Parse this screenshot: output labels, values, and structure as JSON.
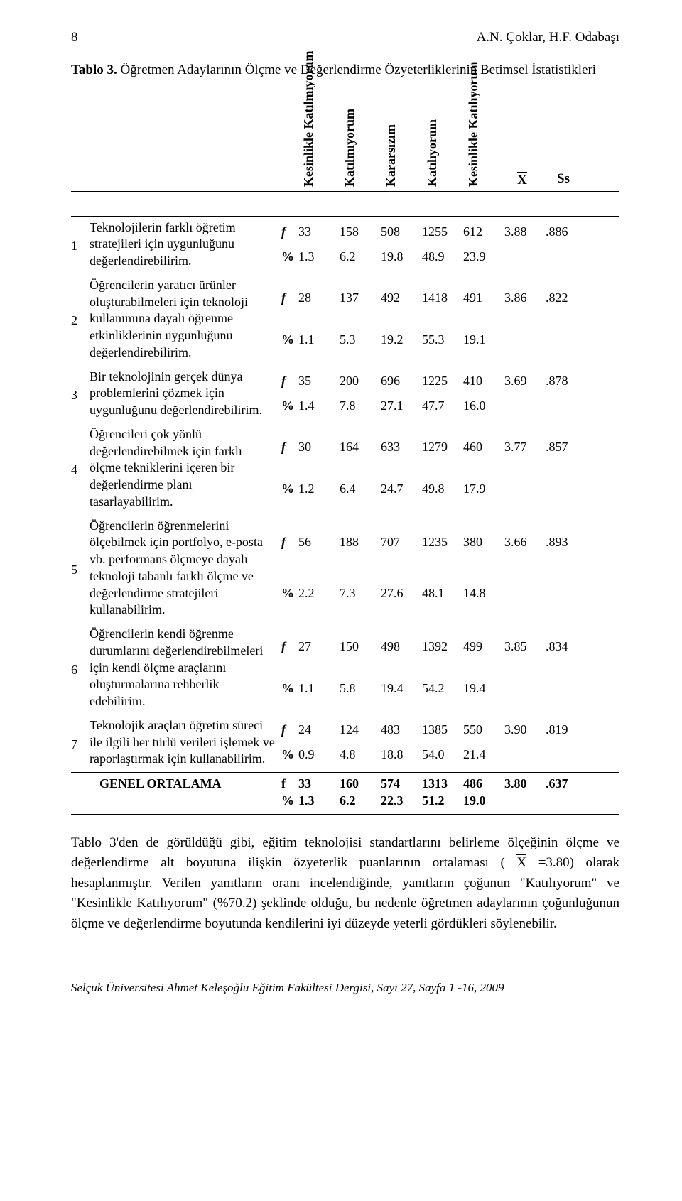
{
  "header": {
    "page_number": "8",
    "authors": "A.N. Çoklar, H.F. Odabaşı"
  },
  "table": {
    "title_prefix": "Tablo 3.",
    "title_rest": " Öğretmen Adaylarının Ölçme ve Değerlendirme Özyeterliklerinin Betimsel İstatistikleri",
    "col_labels": {
      "c1": "Kesinlikle Katılmıyorum",
      "c2": "Katılmıyorum",
      "c3": "Kararsızım",
      "c4": "Katılıyorum",
      "c5": "Kesinlikle Katılıyorum",
      "mean": "X",
      "sd": "Ss"
    },
    "fp_labels": {
      "f": "f",
      "pct": "%"
    },
    "items": [
      {
        "idx": "1",
        "text": "Teknolojilerin farklı öğretim stratejileri için uygunluğunu değerlendirebilirim.",
        "f": [
          "33",
          "158",
          "508",
          "1255",
          "612"
        ],
        "p": [
          "1.3",
          "6.2",
          "19.8",
          "48.9",
          "23.9"
        ],
        "mean": "3.88",
        "sd": ".886"
      },
      {
        "idx": "2",
        "text": "Öğrencilerin yaratıcı ürünler oluşturabilmeleri için teknoloji kullanımına dayalı öğrenme etkinliklerinin uygunluğunu değerlendirebilirim.",
        "f": [
          "28",
          "137",
          "492",
          "1418",
          "491"
        ],
        "p": [
          "1.1",
          "5.3",
          "19.2",
          "55.3",
          "19.1"
        ],
        "mean": "3.86",
        "sd": ".822"
      },
      {
        "idx": "3",
        "text": "Bir teknolojinin gerçek dünya problemlerini çözmek için uygunluğunu değerlendirebilirim.",
        "f": [
          "35",
          "200",
          "696",
          "1225",
          "410"
        ],
        "p": [
          "1.4",
          "7.8",
          "27.1",
          "47.7",
          "16.0"
        ],
        "mean": "3.69",
        "sd": ".878"
      },
      {
        "idx": "4",
        "text": "Öğrencileri çok yönlü değerlendirebilmek için farklı ölçme tekniklerini içeren bir değerlendirme planı tasarlayabilirim.",
        "f": [
          "30",
          "164",
          "633",
          "1279",
          "460"
        ],
        "p": [
          "1.2",
          "6.4",
          "24.7",
          "49.8",
          "17.9"
        ],
        "mean": "3.77",
        "sd": ".857"
      },
      {
        "idx": "5",
        "text": "Öğrencilerin öğrenmelerini ölçebilmek için portfolyo, e-posta vb. performans ölçmeye dayalı teknoloji tabanlı farklı ölçme ve değerlendirme stratejileri kullanabilirim.",
        "f": [
          "56",
          "188",
          "707",
          "1235",
          "380"
        ],
        "p": [
          "2.2",
          "7.3",
          "27.6",
          "48.1",
          "14.8"
        ],
        "mean": "3.66",
        "sd": ".893"
      },
      {
        "idx": "6",
        "text": "Öğrencilerin kendi öğrenme durumlarını değerlendirebilmeleri için kendi ölçme araçlarını oluşturmalarına rehberlik edebilirim.",
        "f": [
          "27",
          "150",
          "498",
          "1392",
          "499"
        ],
        "p": [
          "1.1",
          "5.8",
          "19.4",
          "54.2",
          "19.4"
        ],
        "mean": "3.85",
        "sd": ".834"
      },
      {
        "idx": "7",
        "text": "Teknolojik araçları öğretim süreci ile ilgili her türlü verileri işlemek ve raporlaştırmak için kullanabilirim.",
        "f": [
          "24",
          "124",
          "483",
          "1385",
          "550"
        ],
        "p": [
          "0.9",
          "4.8",
          "18.8",
          "54.0",
          "21.4"
        ],
        "mean": "3.90",
        "sd": ".819"
      }
    ],
    "overall": {
      "label": "GENEL ORTALAMA",
      "f": [
        "33",
        "160",
        "574",
        "1313",
        "486"
      ],
      "p": [
        "1.3",
        "6.2",
        "22.3",
        "51.2",
        "19.0"
      ],
      "mean": "3.80",
      "sd": ".637"
    }
  },
  "paragraph": {
    "prefix": "Tablo 3'den de görüldüğü gibi, eğitim teknolojisi standartlarını belirleme ölçeğinin ölçme ve değerlendirme alt boyutuna ilişkin özyeterlik puanlarının ortalaması (",
    "xbar": "X",
    "middle": "=3.80) olarak hesaplanmıştır. Verilen yanıtların oranı incelendiğinde, yanıtların çoğunun \"Katılıyorum\" ve \"Kesinlikle Katılıyorum\" (%70.2) şeklinde olduğu, bu nedenle öğretmen adaylarının çoğunluğunun ölçme ve değerlendirme boyutunda kendilerini iyi düzeyde yeterli gördükleri söylenebilir."
  },
  "footer": "Selçuk Üniversitesi Ahmet Keleşoğlu Eğitim Fakültesi Dergisi, Sayı 27, Sayfa 1 -16, 2009"
}
